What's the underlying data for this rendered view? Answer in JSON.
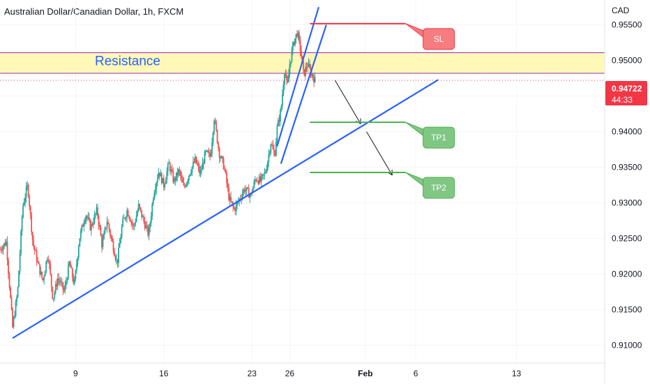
{
  "header": {
    "title": "Australian Dollar/Canadian Dollar, 1h, FXCM",
    "currency": "CAD"
  },
  "price_badge": {
    "price": "0.94722",
    "countdown": "44:33",
    "color": "#f23645"
  },
  "colors": {
    "up": "#26a69a",
    "down": "#ef5350",
    "trend": "#2962ff",
    "zone_fill": "#fff59d",
    "zone_border": "#9c27b0",
    "sl": "#f23645",
    "tp": "#4caf50",
    "tp_box": "#81c784",
    "sl_box": "#f77c80"
  },
  "chart_data": {
    "type": "candlestick",
    "title": "Australian Dollar/Canadian Dollar, 1h, FXCM",
    "ylabel": "CAD",
    "ylim": [
      0.9075,
      0.9585
    ],
    "y_ticks": [
      "0.95500",
      "0.95000",
      "0.94500",
      "0.94000",
      "0.93500",
      "0.93000",
      "0.92500",
      "0.92000",
      "0.91500",
      "0.91000"
    ],
    "x_ticks": [
      "9",
      "16",
      "23",
      "26",
      "Feb",
      "6",
      "13"
    ],
    "x_tick_days": [
      9,
      16,
      23,
      26,
      32,
      36,
      44
    ],
    "xlim_days": [
      3.0,
      51.0
    ],
    "path": [
      [
        3.0,
        0.9235
      ],
      [
        3.5,
        0.9245
      ],
      [
        4.0,
        0.9125
      ],
      [
        4.4,
        0.9175
      ],
      [
        4.8,
        0.9295
      ],
      [
        5.2,
        0.9325
      ],
      [
        5.6,
        0.9245
      ],
      [
        6.0,
        0.9215
      ],
      [
        6.4,
        0.919
      ],
      [
        6.8,
        0.923
      ],
      [
        7.2,
        0.9165
      ],
      [
        7.6,
        0.9195
      ],
      [
        8.1,
        0.9175
      ],
      [
        8.5,
        0.9215
      ],
      [
        8.9,
        0.9185
      ],
      [
        9.3,
        0.925
      ],
      [
        9.8,
        0.9285
      ],
      [
        10.2,
        0.9265
      ],
      [
        10.7,
        0.929
      ],
      [
        11.1,
        0.924
      ],
      [
        11.5,
        0.9275
      ],
      [
        11.9,
        0.9245
      ],
      [
        12.3,
        0.9215
      ],
      [
        12.7,
        0.927
      ],
      [
        13.1,
        0.929
      ],
      [
        13.6,
        0.9265
      ],
      [
        14.0,
        0.9295
      ],
      [
        14.4,
        0.9275
      ],
      [
        14.8,
        0.9255
      ],
      [
        15.2,
        0.9315
      ],
      [
        15.6,
        0.9345
      ],
      [
        16.0,
        0.9325
      ],
      [
        16.4,
        0.9355
      ],
      [
        16.8,
        0.933
      ],
      [
        17.2,
        0.9345
      ],
      [
        17.6,
        0.932
      ],
      [
        18.1,
        0.9345
      ],
      [
        18.5,
        0.936
      ],
      [
        18.9,
        0.934
      ],
      [
        19.3,
        0.937
      ],
      [
        19.7,
        0.9365
      ],
      [
        20.0,
        0.942
      ],
      [
        20.4,
        0.937
      ],
      [
        20.8,
        0.935
      ],
      [
        21.2,
        0.9305
      ],
      [
        21.6,
        0.929
      ],
      [
        22.0,
        0.9305
      ],
      [
        22.4,
        0.932
      ],
      [
        22.9,
        0.931
      ],
      [
        23.3,
        0.9335
      ],
      [
        23.7,
        0.933
      ],
      [
        24.1,
        0.9345
      ],
      [
        24.5,
        0.9385
      ],
      [
        24.8,
        0.9365
      ],
      [
        25.0,
        0.9405
      ],
      [
        25.3,
        0.943
      ],
      [
        25.6,
        0.949
      ],
      [
        25.8,
        0.946
      ],
      [
        26.0,
        0.9495
      ],
      [
        26.3,
        0.9525
      ],
      [
        26.6,
        0.954
      ],
      [
        26.9,
        0.951
      ],
      [
        27.1,
        0.948
      ],
      [
        27.4,
        0.9495
      ],
      [
        27.7,
        0.9482
      ],
      [
        28.0,
        0.94722
      ]
    ],
    "lines": [
      {
        "name": "",
        "kind": "trend",
        "points": [
          [
            4.0,
            0.911
          ],
          [
            37.8,
            0.9473
          ]
        ]
      },
      {
        "name": "",
        "kind": "channel",
        "points": [
          [
            25.0,
            0.938
          ],
          [
            28.3,
            0.9575
          ]
        ]
      },
      {
        "name": "",
        "kind": "channel",
        "points": [
          [
            25.3,
            0.9355
          ],
          [
            28.9,
            0.955
          ]
        ]
      }
    ],
    "zones": [
      {
        "label": "Resistance",
        "y": [
          0.9482,
          0.9511
        ]
      }
    ],
    "levels": [
      {
        "label": "SL",
        "y": 0.95518,
        "from_day": 27.6,
        "to_day": 35.2
      },
      {
        "label": "TP1",
        "y": 0.94133,
        "from_day": 27.6,
        "to_day": 35.2
      },
      {
        "label": "TP2",
        "y": 0.93428,
        "from_day": 27.6,
        "to_day": 35.2
      }
    ],
    "arrows": [
      {
        "from": [
          29.6,
          0.9472
        ],
        "to": [
          31.6,
          0.9412
        ]
      },
      {
        "from": [
          32.1,
          0.94
        ],
        "to": [
          34.1,
          0.934
        ]
      }
    ],
    "current_price": 0.94722
  }
}
